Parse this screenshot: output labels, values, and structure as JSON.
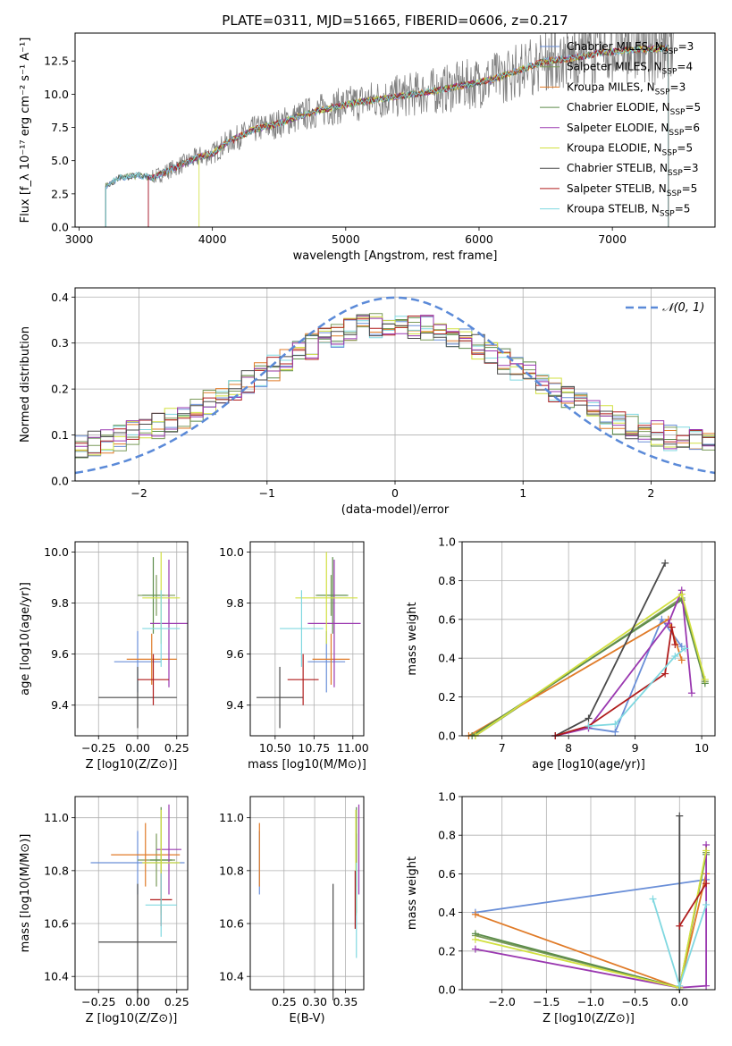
{
  "figure_title": "PLATE=0311, MJD=51665, FIBERID=0606, z=0.217",
  "models": [
    {
      "name": "Chabrier MILES",
      "nssp": "3",
      "color": "#6a8fd8"
    },
    {
      "name": "Salpeter MILES",
      "nssp": "4",
      "color": "#7a9a5a"
    },
    {
      "name": "Kroupa MILES",
      "nssp": "3",
      "color": "#e07b28"
    },
    {
      "name": "Chabrier ELODIE",
      "nssp": "5",
      "color": "#5c8c4a"
    },
    {
      "name": "Salpeter ELODIE",
      "nssp": "6",
      "color": "#9a38b0"
    },
    {
      "name": "Kroupa ELODIE",
      "nssp": "5",
      "color": "#d2e040"
    },
    {
      "name": "Chabrier STELIB",
      "nssp": "3",
      "color": "#4a4a4a"
    },
    {
      "name": "Salpeter STELIB",
      "nssp": "5",
      "color": "#b01c1c"
    },
    {
      "name": "Kroupa STELIB",
      "nssp": "5",
      "color": "#80d8e0"
    }
  ],
  "chart_data": [
    {
      "type": "line",
      "id": "spectrum",
      "xlabel": "wavelength [Angstrom, rest frame]",
      "ylabel": "Flux [f_λ 10⁻¹⁷ erg cm⁻² s⁻¹ A⁻¹]",
      "xlim": [
        2970,
        7770
      ],
      "ylim": [
        0,
        14.6
      ],
      "xticks": [
        3000,
        4000,
        5000,
        6000,
        7000
      ],
      "yticks": [
        0.0,
        2.5,
        5.0,
        7.5,
        10.0,
        12.5
      ],
      "continuum": [
        [
          3200,
          3.1
        ],
        [
          3300,
          3.7
        ],
        [
          3450,
          3.9
        ],
        [
          3550,
          3.7
        ],
        [
          3700,
          4.4
        ],
        [
          3900,
          5.3
        ],
        [
          4000,
          5.5
        ],
        [
          4100,
          6.3
        ],
        [
          4300,
          7.3
        ],
        [
          4500,
          7.8
        ],
        [
          4700,
          8.5
        ],
        [
          4900,
          9.0
        ],
        [
          5100,
          9.4
        ],
        [
          5300,
          9.7
        ],
        [
          5500,
          10.0
        ],
        [
          5700,
          10.3
        ],
        [
          5900,
          10.7
        ],
        [
          6100,
          11.1
        ],
        [
          6300,
          11.8
        ],
        [
          6500,
          12.5
        ],
        [
          6700,
          12.7
        ],
        [
          6900,
          13.1
        ],
        [
          7100,
          13.3
        ],
        [
          7300,
          13.4
        ],
        [
          7450,
          13.5
        ]
      ],
      "grid": false,
      "legend": "top-right"
    },
    {
      "type": "area",
      "id": "residuals",
      "xlabel": "(data-model)/error",
      "ylabel": "Normed distribution",
      "xlim": [
        -2.5,
        2.5
      ],
      "ylim": [
        0,
        0.42
      ],
      "xticks": [
        -2,
        -1,
        0,
        1,
        2
      ],
      "yticks": [
        0.0,
        0.1,
        0.2,
        0.3,
        0.4
      ],
      "reference_label": "𝒩(0, 1)",
      "grid": true,
      "legend": "top-right"
    },
    {
      "type": "scatter",
      "id": "age_vs_Z",
      "xlabel": "Z [log10(Z/Z⊙)]",
      "ylabel": "age  [log10(age/yr)]",
      "xlim": [
        -0.4,
        0.32
      ],
      "ylim": [
        9.28,
        10.04
      ],
      "xticks": [
        -0.25,
        0.0,
        0.25
      ],
      "yticks": [
        9.4,
        9.6,
        9.8,
        10.0
      ],
      "points": [
        {
          "model": 0,
          "x": 0.0,
          "xerr": 0.15,
          "y": 9.57,
          "yerr": 0.12
        },
        {
          "model": 1,
          "x": 0.12,
          "xerr": 0.12,
          "y": 9.83,
          "yerr": 0.08
        },
        {
          "model": 2,
          "x": 0.09,
          "xerr": 0.16,
          "y": 9.58,
          "yerr": 0.1
        },
        {
          "model": 3,
          "x": 0.1,
          "xerr": 0.07,
          "y": 9.83,
          "yerr": 0.15
        },
        {
          "model": 4,
          "x": 0.2,
          "xerr": 0.12,
          "y": 9.72,
          "yerr": 0.25
        },
        {
          "model": 5,
          "x": 0.15,
          "xerr": 0.12,
          "y": 9.82,
          "yerr": 0.18
        },
        {
          "model": 6,
          "x": 0.0,
          "xerr": 0.25,
          "y": 9.43,
          "yerr": 0.12
        },
        {
          "model": 7,
          "x": 0.1,
          "xerr": 0.1,
          "y": 9.5,
          "yerr": 0.1
        },
        {
          "model": 8,
          "x": 0.15,
          "xerr": 0.12,
          "y": 9.7,
          "yerr": 0.15
        }
      ],
      "grid": true
    },
    {
      "type": "scatter",
      "id": "age_vs_mass",
      "xlabel": "mass [log10(M/M⊙)]",
      "ylabel": "",
      "xlim": [
        10.34,
        11.07
      ],
      "ylim": [
        9.28,
        10.04
      ],
      "xticks": [
        10.5,
        10.75,
        11.0
      ],
      "yticks": [
        9.4,
        9.6,
        9.8,
        10.0
      ],
      "points": [
        {
          "model": 0,
          "x": 10.83,
          "xerr": 0.12,
          "y": 9.57,
          "yerr": 0.12
        },
        {
          "model": 1,
          "x": 10.86,
          "xerr": 0.1,
          "y": 9.83,
          "yerr": 0.08
        },
        {
          "model": 2,
          "x": 10.86,
          "xerr": 0.12,
          "y": 9.58,
          "yerr": 0.1
        },
        {
          "model": 3,
          "x": 10.87,
          "xerr": 0.1,
          "y": 9.83,
          "yerr": 0.15
        },
        {
          "model": 4,
          "x": 10.88,
          "xerr": 0.17,
          "y": 9.72,
          "yerr": 0.25
        },
        {
          "model": 5,
          "x": 10.83,
          "xerr": 0.2,
          "y": 9.82,
          "yerr": 0.18
        },
        {
          "model": 6,
          "x": 10.53,
          "xerr": 0.15,
          "y": 9.43,
          "yerr": 0.12
        },
        {
          "model": 7,
          "x": 10.68,
          "xerr": 0.1,
          "y": 9.5,
          "yerr": 0.1
        },
        {
          "model": 8,
          "x": 10.67,
          "xerr": 0.14,
          "y": 9.7,
          "yerr": 0.15
        }
      ],
      "grid": true
    },
    {
      "type": "line",
      "id": "mass_weight_vs_age",
      "xlabel": "age  [log10(age/yr)]",
      "ylabel": "mass weight",
      "xlim": [
        6.4,
        10.2
      ],
      "ylim": [
        0,
        1.0
      ],
      "xticks": [
        7,
        8,
        9,
        10
      ],
      "yticks": [
        0.0,
        0.2,
        0.4,
        0.6,
        0.8,
        1.0
      ],
      "series": [
        {
          "model": 0,
          "x": [
            8.3,
            8.7,
            9.4,
            9.7
          ],
          "y": [
            0.04,
            0.02,
            0.6,
            0.46
          ]
        },
        {
          "model": 1,
          "x": [
            6.6,
            9.7,
            10.05
          ],
          "y": [
            0.0,
            0.71,
            0.28
          ]
        },
        {
          "model": 2,
          "x": [
            6.5,
            9.5,
            9.7
          ],
          "y": [
            0.0,
            0.6,
            0.39
          ]
        },
        {
          "model": 3,
          "x": [
            6.55,
            9.7,
            10.05
          ],
          "y": [
            0.0,
            0.7,
            0.27
          ]
        },
        {
          "model": 4,
          "x": [
            7.8,
            8.3,
            9.5,
            9.7,
            9.85
          ],
          "y": [
            0.0,
            0.04,
            0.58,
            0.75,
            0.22
          ]
        },
        {
          "model": 5,
          "x": [
            6.6,
            9.7,
            10.05
          ],
          "y": [
            0.0,
            0.73,
            0.29
          ]
        },
        {
          "model": 6,
          "x": [
            7.8,
            8.3,
            9.45
          ],
          "y": [
            0.0,
            0.09,
            0.89
          ]
        },
        {
          "model": 7,
          "x": [
            7.8,
            8.3,
            9.45,
            9.55,
            9.6
          ],
          "y": [
            0.0,
            0.05,
            0.32,
            0.56,
            0.47
          ]
        },
        {
          "model": 8,
          "x": [
            8.3,
            8.7,
            9.6,
            9.75
          ],
          "y": [
            0.05,
            0.06,
            0.41,
            0.45
          ]
        }
      ],
      "grid": true
    },
    {
      "type": "scatter",
      "id": "mass_vs_Z",
      "xlabel": "Z [log10(Z/Z⊙)]",
      "ylabel": "mass [log10(M/M⊙)]",
      "xlim": [
        -0.4,
        0.32
      ],
      "ylim": [
        10.35,
        11.08
      ],
      "xticks": [
        -0.25,
        0.0,
        0.25
      ],
      "yticks": [
        10.4,
        10.6,
        10.8,
        11.0
      ],
      "points": [
        {
          "model": 0,
          "x": 0.0,
          "xerr": 0.3,
          "y": 10.83,
          "yerr": 0.12
        },
        {
          "model": 1,
          "x": 0.12,
          "xerr": 0.12,
          "y": 10.84,
          "yerr": 0.1
        },
        {
          "model": 2,
          "x": 0.05,
          "xerr": 0.22,
          "y": 10.86,
          "yerr": 0.12
        },
        {
          "model": 3,
          "x": 0.15,
          "xerr": 0.07,
          "y": 10.84,
          "yerr": 0.2
        },
        {
          "model": 4,
          "x": 0.2,
          "xerr": 0.08,
          "y": 10.88,
          "yerr": 0.17
        },
        {
          "model": 5,
          "x": 0.15,
          "xerr": 0.12,
          "y": 10.83,
          "yerr": 0.2
        },
        {
          "model": 6,
          "x": 0.0,
          "xerr": 0.25,
          "y": 10.53,
          "yerr": 0.22
        },
        {
          "model": 7,
          "x": 0.15,
          "xerr": 0.07,
          "y": 10.69,
          "yerr": 0.1
        },
        {
          "model": 8,
          "x": 0.15,
          "xerr": 0.1,
          "y": 10.67,
          "yerr": 0.12
        }
      ],
      "grid": true
    },
    {
      "type": "scatter",
      "id": "mass_vs_ebv",
      "xlabel": "E(B-V)",
      "ylabel": "",
      "xlim": [
        0.195,
        0.38
      ],
      "ylim": [
        10.35,
        11.08
      ],
      "xticks": [
        0.25,
        0.3,
        0.35
      ],
      "yticks": [
        10.4,
        10.6,
        10.8,
        11.0
      ],
      "points": [
        {
          "model": 0,
          "x": 0.21,
          "yerr": 0.12,
          "y": 10.83
        },
        {
          "model": 1,
          "x": 0.368,
          "yerr": 0.1,
          "y": 10.84
        },
        {
          "model": 2,
          "x": 0.21,
          "yerr": 0.12,
          "y": 10.86
        },
        {
          "model": 3,
          "x": 0.368,
          "yerr": 0.2,
          "y": 10.84
        },
        {
          "model": 4,
          "x": 0.372,
          "yerr": 0.17,
          "y": 10.88
        },
        {
          "model": 5,
          "x": 0.367,
          "yerr": 0.2,
          "y": 10.83
        },
        {
          "model": 6,
          "x": 0.33,
          "yerr": 0.22,
          "y": 10.53
        },
        {
          "model": 7,
          "x": 0.366,
          "yerr": 0.11,
          "y": 10.69
        },
        {
          "model": 8,
          "x": 0.368,
          "yerr": 0.18,
          "y": 10.65
        }
      ],
      "grid": true
    },
    {
      "type": "line",
      "id": "mass_weight_vs_Z",
      "xlabel": "Z [log10(Z/Z⊙)]",
      "ylabel": "mass weight",
      "xlim": [
        -2.45,
        0.4
      ],
      "ylim": [
        0,
        1.0
      ],
      "xticks": [
        -2.0,
        -1.5,
        -1.0,
        -0.5,
        0.0
      ],
      "yticks": [
        0.0,
        0.2,
        0.4,
        0.6,
        0.8,
        1.0
      ],
      "series": [
        {
          "model": 0,
          "x": [
            -2.3,
            0.3
          ],
          "y": [
            0.4,
            0.57
          ]
        },
        {
          "model": 1,
          "x": [
            -2.3,
            0.0,
            0.3
          ],
          "y": [
            0.28,
            0.01,
            0.71
          ]
        },
        {
          "model": 2,
          "x": [
            -2.3,
            0.0,
            0.3
          ],
          "y": [
            0.39,
            0.01,
            0.6
          ]
        },
        {
          "model": 3,
          "x": [
            -2.3,
            0.0,
            0.3
          ],
          "y": [
            0.29,
            0.01,
            0.7
          ]
        },
        {
          "model": 4,
          "x": [
            -2.3,
            0.0,
            0.3,
            0.3
          ],
          "y": [
            0.21,
            0.01,
            0.02,
            0.75
          ]
        },
        {
          "model": 5,
          "x": [
            -2.3,
            0.0,
            0.3
          ],
          "y": [
            0.26,
            0.01,
            0.72
          ]
        },
        {
          "model": 6,
          "x": [
            0.0,
            0.0
          ],
          "y": [
            0.0,
            0.9
          ]
        },
        {
          "model": 7,
          "x": [
            0.0,
            0.3
          ],
          "y": [
            0.33,
            0.55
          ]
        },
        {
          "model": 8,
          "x": [
            -0.3,
            0.0,
            0.3
          ],
          "y": [
            0.47,
            0.02,
            0.44
          ]
        }
      ],
      "grid": true
    }
  ]
}
